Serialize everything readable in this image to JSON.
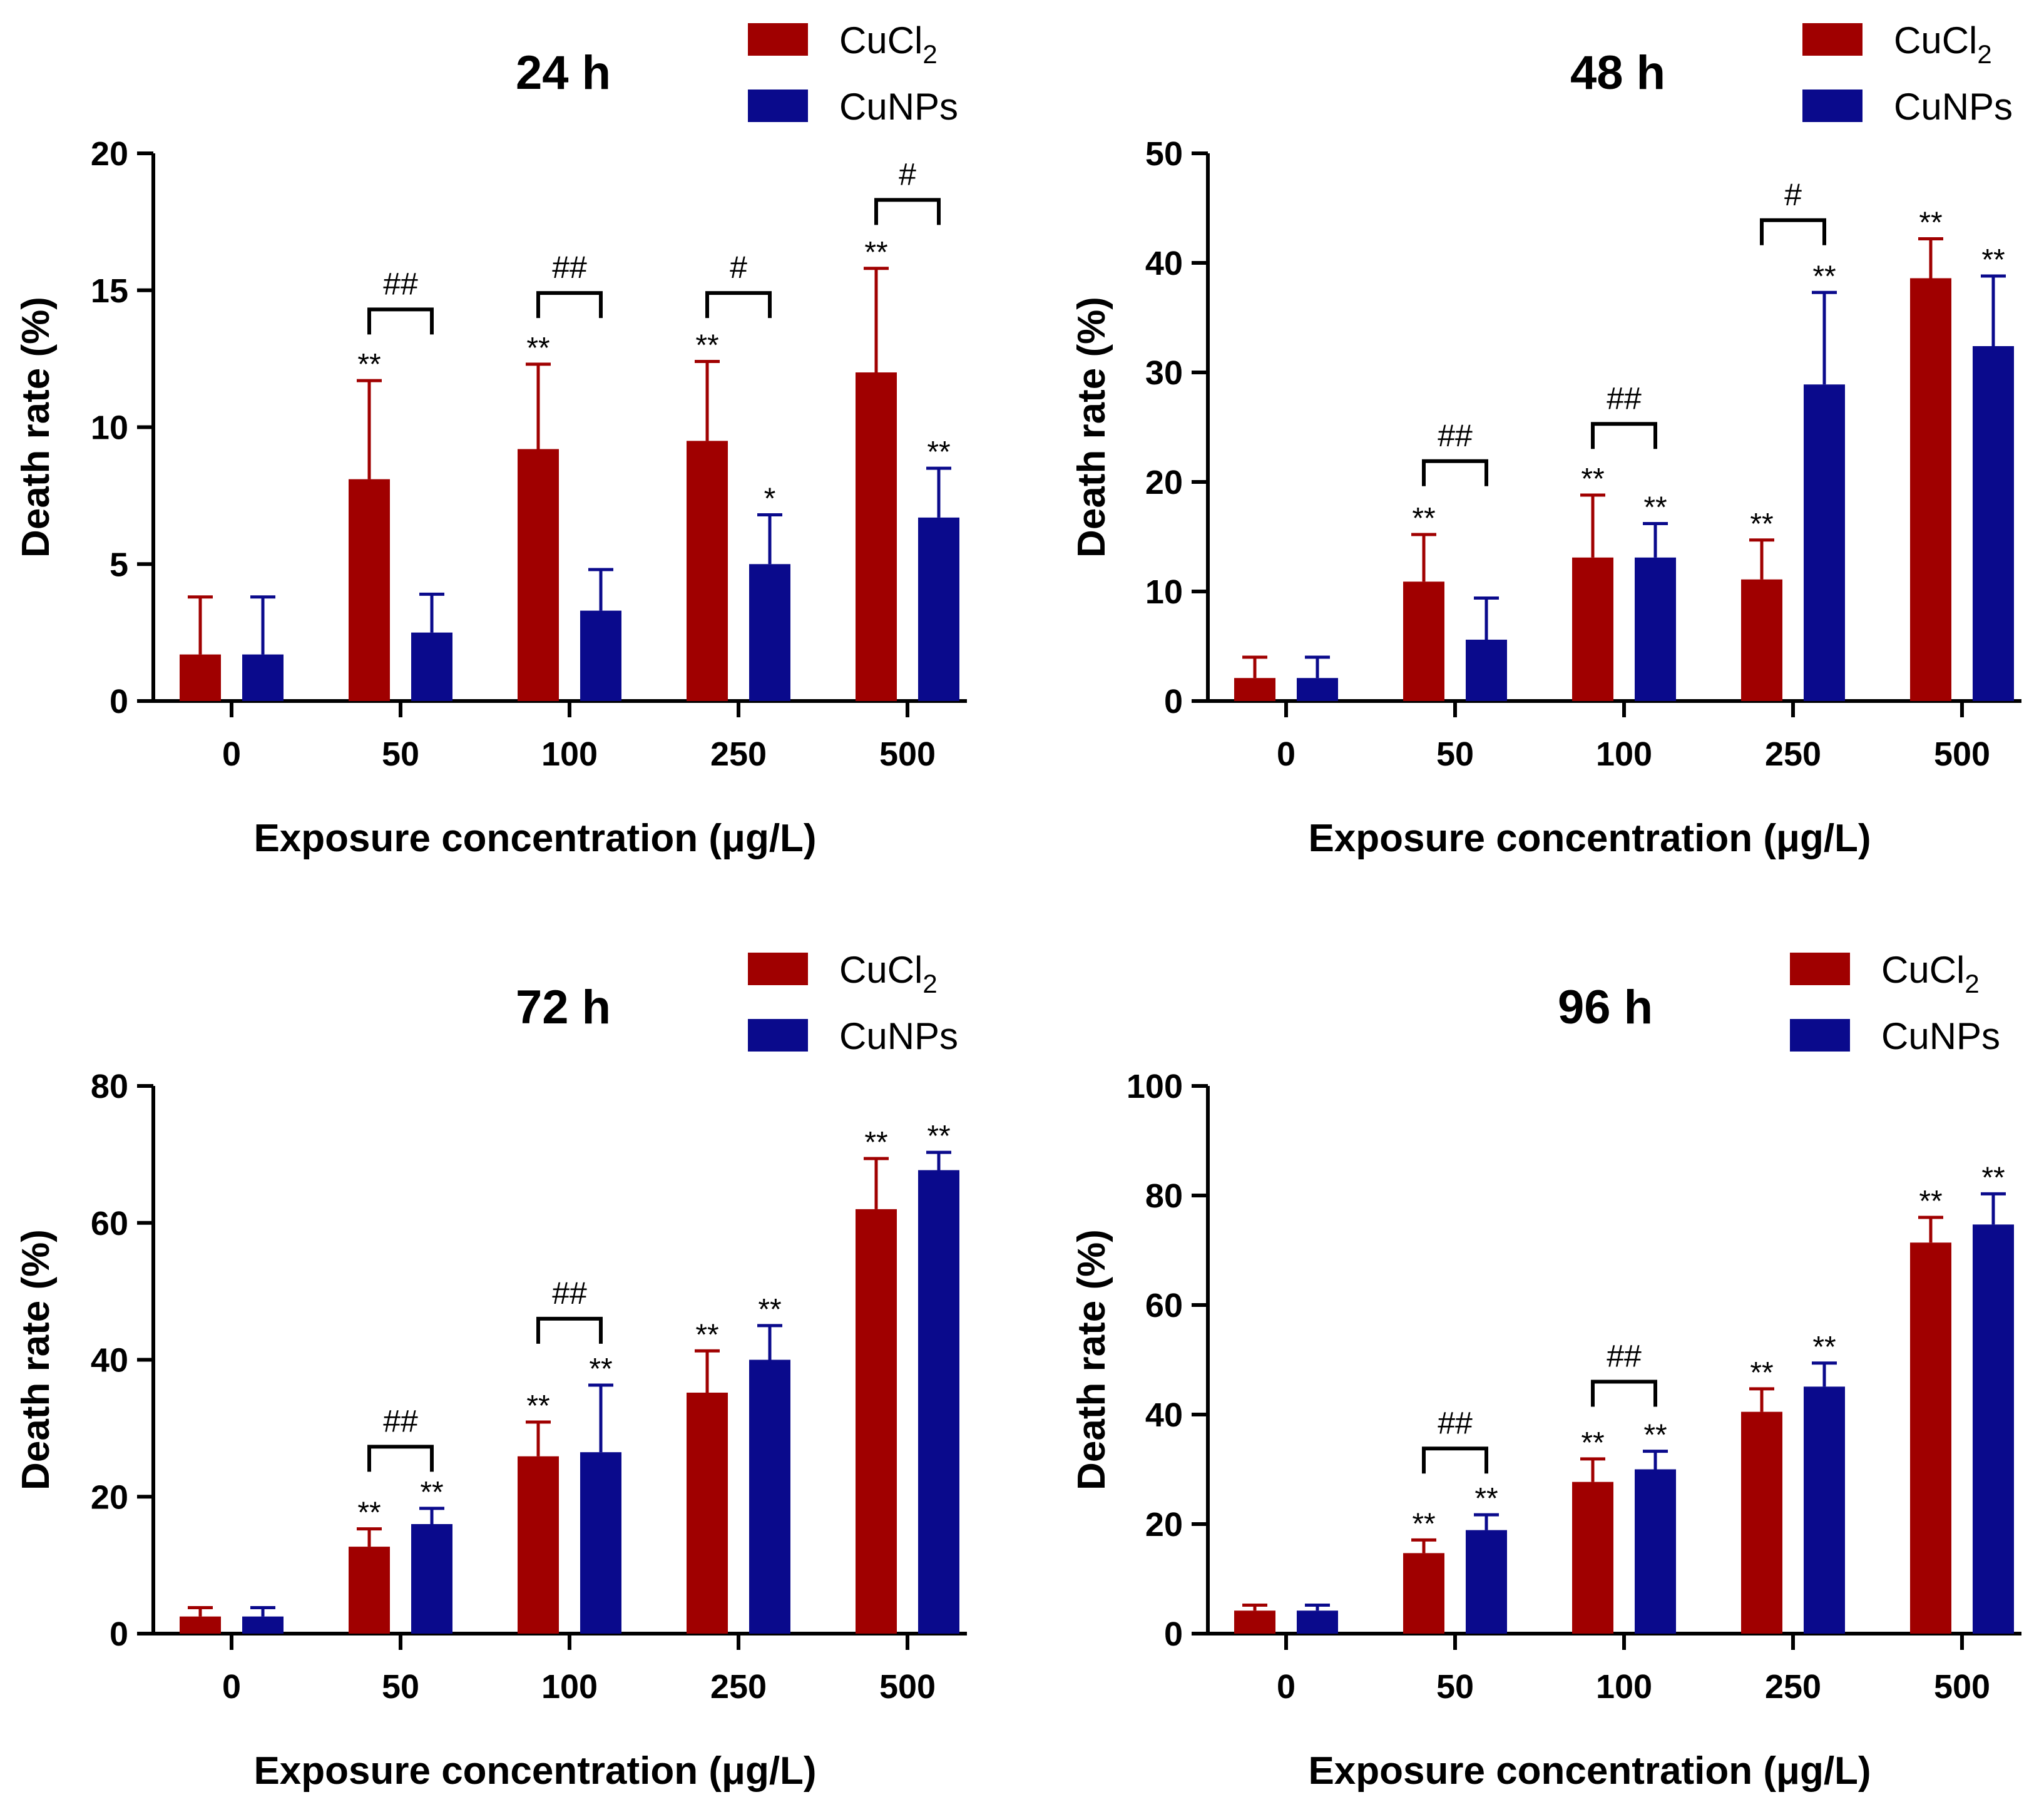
{
  "chart_data": [
    {
      "type": "bar",
      "title": "24 h",
      "xlabel": "Exposure concentration (μg/L)",
      "ylabel": "Death rate (%)",
      "categories": [
        "0",
        "50",
        "100",
        "250",
        "500"
      ],
      "ylim": [
        0,
        20
      ],
      "yticks": [
        "0",
        "5",
        "10",
        "15",
        "20"
      ],
      "series": [
        {
          "name": "CuCl",
          "subscript": "2",
          "color": "#a00000",
          "values": [
            1.7,
            8.1,
            9.2,
            9.5,
            12.0
          ],
          "errors": [
            2.1,
            3.6,
            3.1,
            2.9,
            3.8
          ],
          "sig": [
            "",
            "**",
            "**",
            "**",
            "**"
          ]
        },
        {
          "name": "CuNPs",
          "color": "#0a0a8c",
          "values": [
            1.7,
            2.5,
            3.3,
            5.0,
            6.7
          ],
          "errors": [
            2.1,
            1.4,
            1.5,
            1.8,
            1.8
          ],
          "sig": [
            "",
            "",
            "",
            "*",
            "**"
          ]
        }
      ],
      "brackets": [
        {
          "category": 1,
          "label": "##",
          "y": 14.3
        },
        {
          "category": 2,
          "label": "##",
          "y": 14.9
        },
        {
          "category": 3,
          "label": "#",
          "y": 14.9
        },
        {
          "category": 4,
          "label": "#",
          "y": 18.3
        }
      ]
    },
    {
      "type": "bar",
      "title": "48 h",
      "xlabel": "Exposure concentration (μg/L)",
      "ylabel": "Death rate (%)",
      "categories": [
        "0",
        "50",
        "100",
        "250",
        "500"
      ],
      "ylim": [
        0,
        50
      ],
      "yticks": [
        "0",
        "10",
        "20",
        "30",
        "40",
        "50"
      ],
      "series": [
        {
          "name": "CuCl",
          "subscript": "2",
          "color": "#a00000",
          "values": [
            2.1,
            10.9,
            13.1,
            11.1,
            38.6
          ],
          "errors": [
            1.9,
            4.3,
            5.7,
            3.6,
            3.6
          ],
          "sig": [
            "",
            "**",
            "**",
            "**",
            "**"
          ]
        },
        {
          "name": "CuNPs",
          "color": "#0a0a8c",
          "values": [
            2.1,
            5.6,
            13.1,
            28.9,
            32.4
          ],
          "errors": [
            1.9,
            3.8,
            3.1,
            8.4,
            6.4
          ],
          "sig": [
            "",
            "",
            "**",
            "**",
            "**"
          ]
        }
      ],
      "brackets": [
        {
          "category": 1,
          "label": "##",
          "y": 21.9
        },
        {
          "category": 2,
          "label": "##",
          "y": 25.3
        },
        {
          "category": 3,
          "label": "#",
          "y": 43.9
        }
      ]
    },
    {
      "type": "bar",
      "title": "72 h",
      "xlabel": "Exposure concentration (μg/L)",
      "ylabel": "Death rate (%)",
      "categories": [
        "0",
        "50",
        "100",
        "250",
        "500"
      ],
      "ylim": [
        0,
        80
      ],
      "yticks": [
        "0",
        "20",
        "40",
        "60",
        "80"
      ],
      "series": [
        {
          "name": "CuCl",
          "subscript": "2",
          "color": "#a00000",
          "values": [
            2.5,
            12.7,
            25.9,
            35.2,
            62.0
          ],
          "errors": [
            1.3,
            2.6,
            5.0,
            6.1,
            7.4
          ],
          "sig": [
            "",
            "**",
            "**",
            "**",
            "**"
          ]
        },
        {
          "name": "CuNPs",
          "color": "#0a0a8c",
          "values": [
            2.5,
            16.0,
            26.5,
            40.0,
            67.7
          ],
          "errors": [
            1.3,
            2.3,
            9.8,
            5.0,
            2.6
          ],
          "sig": [
            "",
            "**",
            "**",
            "**",
            "**"
          ]
        }
      ],
      "brackets": [
        {
          "category": 1,
          "label": "##",
          "y": 27.3
        },
        {
          "category": 2,
          "label": "##",
          "y": 46.0
        }
      ]
    },
    {
      "type": "bar",
      "title": "96 h",
      "xlabel": "Exposure concentration (μg/L)",
      "ylabel": "Death rate (%)",
      "categories": [
        "0",
        "50",
        "100",
        "250",
        "500"
      ],
      "ylim": [
        0,
        100
      ],
      "yticks": [
        "0",
        "20",
        "40",
        "60",
        "80",
        "100"
      ],
      "series": [
        {
          "name": "CuCl",
          "subscript": "2",
          "color": "#a00000",
          "values": [
            4.2,
            14.7,
            27.7,
            40.5,
            71.4
          ],
          "errors": [
            1.0,
            2.4,
            4.2,
            4.2,
            4.6
          ],
          "sig": [
            "",
            "**",
            "**",
            "**",
            "**"
          ]
        },
        {
          "name": "CuNPs",
          "color": "#0a0a8c",
          "values": [
            4.2,
            18.9,
            30.0,
            45.1,
            74.7
          ],
          "errors": [
            1.0,
            2.8,
            3.3,
            4.3,
            5.6
          ],
          "sig": [
            "",
            "**",
            "**",
            "**",
            "**"
          ]
        }
      ],
      "brackets": [
        {
          "category": 1,
          "label": "##",
          "y": 33.8
        },
        {
          "category": 2,
          "label": "##",
          "y": 46.0
        }
      ]
    }
  ]
}
